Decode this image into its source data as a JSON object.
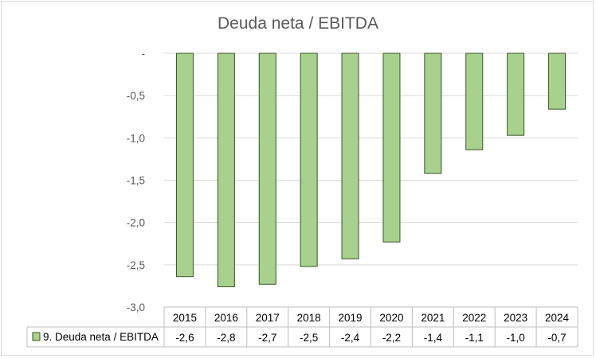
{
  "chart_data": {
    "type": "bar",
    "title": "Deuda neta / EBITDA",
    "categories": [
      "2015",
      "2016",
      "2017",
      "2018",
      "2019",
      "2020",
      "2021",
      "2022",
      "2023",
      "2024"
    ],
    "series": [
      {
        "name": "9. Deuda neta / EBITDA",
        "values": [
          -2.64,
          -2.76,
          -2.73,
          -2.52,
          -2.43,
          -2.23,
          -1.42,
          -1.14,
          -0.97,
          -0.66
        ],
        "labels": [
          "-2,6",
          "-2,8",
          "-2,7",
          "-2,5",
          "-2,4",
          "-2,2",
          "-1,4",
          "-1,1",
          "-1,0",
          "-0,7"
        ],
        "color": "#a9d18e",
        "border_color": "#375623"
      }
    ],
    "ylim": [
      -3.0,
      0
    ],
    "yticks": [
      0,
      -0.5,
      -1.0,
      -1.5,
      -2.0,
      -2.5,
      -3.0
    ],
    "ytick_labels": [
      "-",
      "-0,5",
      "-1,0",
      "-1,5",
      "-2,0",
      "-2,5",
      "-3,0"
    ],
    "xlabel": "",
    "ylabel": "",
    "grid": true,
    "legend": "data-table"
  }
}
